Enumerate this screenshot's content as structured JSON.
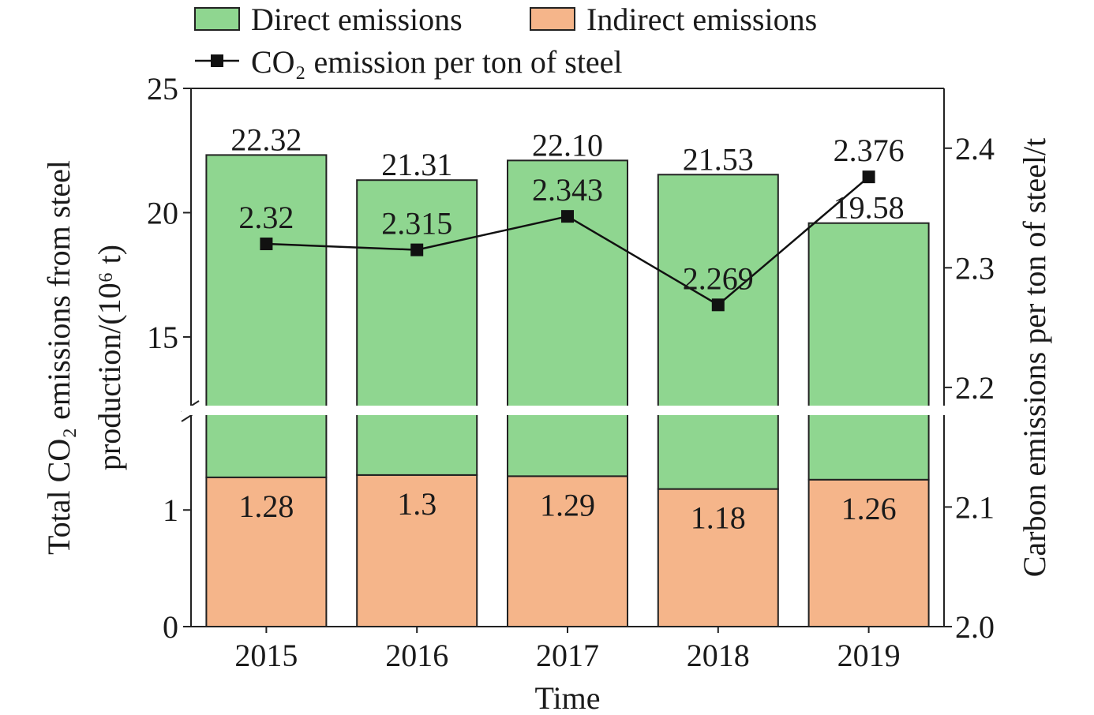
{
  "chart_data": {
    "type": "bar",
    "categories": [
      "2015",
      "2016",
      "2017",
      "2018",
      "2019"
    ],
    "series": [
      {
        "name": "Indirect emissions",
        "kind": "stacked-bar",
        "values": [
          1.28,
          1.3,
          1.29,
          1.18,
          1.26
        ],
        "labels": [
          "1.28",
          "1.3",
          "1.29",
          "1.18",
          "1.26"
        ],
        "color": "#f5b58a"
      },
      {
        "name": "Direct emissions",
        "kind": "stacked-bar",
        "values": [
          21.04,
          20.01,
          20.81,
          20.35,
          18.32
        ],
        "color": "#8fd690"
      },
      {
        "name": "CO2 emission per ton of steel",
        "kind": "line",
        "axis": "right",
        "values": [
          2.32,
          2.315,
          2.343,
          2.269,
          2.376
        ],
        "labels": [
          "2.32",
          "2.315",
          "2.343",
          "2.269",
          "2.376"
        ],
        "color": "#111111"
      }
    ],
    "totals": [
      22.32,
      21.31,
      22.1,
      21.53,
      19.58
    ],
    "total_labels": [
      "22.32",
      "21.31",
      "22.10",
      "21.53",
      "19.58"
    ],
    "xlabel": "Time",
    "ylabel_line1": "Total CO₂ emissions from steel",
    "ylabel_line2": "production/(10⁶ t)",
    "ylabel_right": "Carbon emissions per ton of steel/t",
    "y_axis_break": {
      "lower_range": [
        0,
        1.8
      ],
      "upper_range": [
        12.3,
        25
      ]
    },
    "y_ticks_lower": [
      "0",
      "1"
    ],
    "y_ticks_upper": [
      "15",
      "20",
      "25"
    ],
    "y2lim": [
      2.0,
      2.45
    ],
    "y2_ticks": [
      "2.0",
      "2.1",
      "2.2",
      "2.3",
      "2.4"
    ],
    "legend_entries": [
      "Direct emissions",
      "Indirect emissions",
      "CO₂ emission per ton of steel"
    ],
    "legend_position": "top",
    "grid": false
  }
}
